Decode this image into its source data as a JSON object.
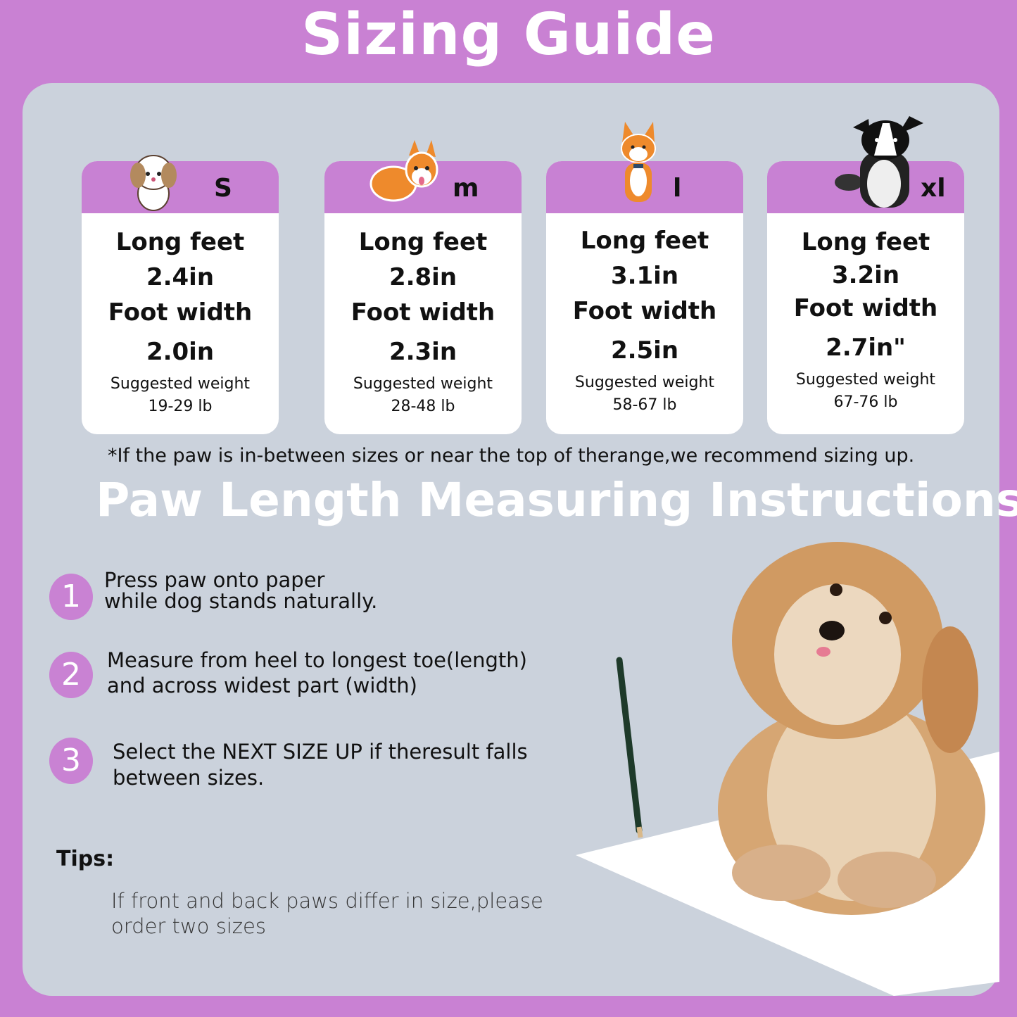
{
  "title": "Sizing Guide",
  "colors": {
    "background": "#c981d3",
    "panel": "#cbd2dc",
    "card_header": "#c881d3",
    "step_circle": "#c982d3"
  },
  "cards": [
    {
      "size": "S",
      "dog_icon": "shih-tzu-cartoon-icon",
      "length_label": "Long feet",
      "length": "2.4in",
      "width_label": "Foot width",
      "width": "2.0in",
      "weight_label": "Suggested weight",
      "weight": "19-29 lb"
    },
    {
      "size": "m",
      "dog_icon": "corgi-lying-cartoon-icon",
      "length_label": "Long feet",
      "length": "2.8in",
      "width_label": "Foot width",
      "width": "2.3in",
      "weight_label": "Suggested weight",
      "weight": "28-48 lb"
    },
    {
      "size": "l",
      "dog_icon": "shiba-cartoon-icon",
      "length_label": "Long feet",
      "length": "3.1in",
      "width_label": "Foot width",
      "width": "2.5in",
      "weight_label": "Suggested weight",
      "weight": "58-67 lb"
    },
    {
      "size": "xl",
      "dog_icon": "border-collie-cartoon-icon",
      "length_label": "Long feet",
      "length": "3.2in",
      "width_label": "Foot width",
      "width": "2.7in\"",
      "weight_label": "Suggested weight",
      "weight": "67-76 lb"
    }
  ],
  "note": "*If the paw is in-between sizes or near the top of therange,we recommend sizing up.",
  "instructions_title": "Paw Length Measuring Instructions",
  "steps": [
    {
      "num": "1",
      "line1": "Press paw onto paper",
      "line2": "while dog stands naturally."
    },
    {
      "num": "2",
      "line1": "Measure from heel to longest toe(length)",
      "line2": "and across widest part (width)"
    },
    {
      "num": "3",
      "line1": "Select the NEXT SIZE UP if theresult falls",
      "line2": "between sizes."
    }
  ],
  "tips_label": "Tips:",
  "tips": {
    "line1": "If front and back paws differ in size,please",
    "line2": "order two sizes"
  }
}
